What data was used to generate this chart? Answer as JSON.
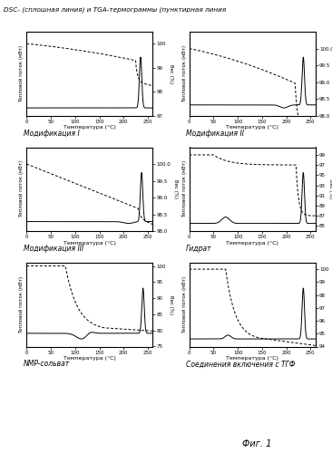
{
  "title": "DSC- (сплошная линия) и TGA-термограммы (пунктирная линия",
  "fig_note": "Фиг. 1",
  "panels": [
    {
      "label": "Модификация I",
      "tga_ylim": [
        97,
        100.5
      ],
      "tga_yticks": [
        97,
        98,
        99,
        100
      ],
      "tga_ylabel": "Вес (%)"
    },
    {
      "label": "Модификация II",
      "tga_ylim": [
        98.0,
        100.5
      ],
      "tga_yticks": [
        98.0,
        98.5,
        99.0,
        99.5,
        100.0
      ],
      "tga_ylabel": "Вес (%)"
    },
    {
      "label": "Модификация III",
      "tga_ylim": [
        98.0,
        100.5
      ],
      "tga_yticks": [
        98.0,
        98.5,
        99.0,
        99.5,
        100.0
      ],
      "tga_ylabel": "Вес (%)"
    },
    {
      "label": "Гидрат",
      "tga_ylim": [
        84,
        100.5
      ],
      "tga_yticks": [
        85,
        87,
        89,
        91,
        93,
        95,
        97,
        99
      ],
      "tga_ylabel": "Вес (%)"
    },
    {
      "label": "NMP-сольват",
      "tga_ylim": [
        75,
        101
      ],
      "tga_yticks": [
        75,
        80,
        85,
        90,
        95,
        100
      ],
      "tga_ylabel": "Вес (%)"
    },
    {
      "label": "Соединения включения с ТГФ",
      "tga_ylim": [
        94,
        100.5
      ],
      "tga_yticks": [
        94,
        95,
        96,
        97,
        98,
        99,
        100
      ],
      "tga_ylabel": "Вес (%)"
    }
  ],
  "xlabel": "Температура (°C)",
  "ylabel_dsc": "Тепловой поток (мВт)",
  "xmin": 0,
  "xmax": 260,
  "xticks": [
    0,
    50,
    100,
    150,
    200,
    250
  ]
}
